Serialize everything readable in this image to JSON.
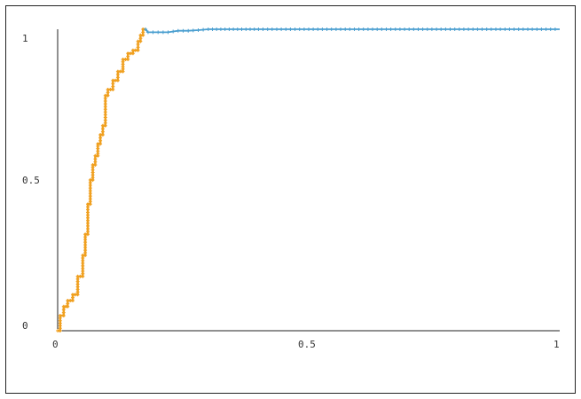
{
  "chart_data": {
    "type": "line",
    "title": "",
    "xlabel": "",
    "ylabel": "",
    "xlim": [
      0,
      1
    ],
    "ylim": [
      0,
      1
    ],
    "x_ticks": [
      "0",
      "0.5",
      "1"
    ],
    "y_ticks": [
      "0",
      "0.5",
      "1"
    ],
    "grid": false,
    "legend": "none",
    "series": [
      {
        "color": "#f0a020",
        "x": [
          0.0,
          0.005,
          0.005,
          0.012,
          0.012,
          0.02,
          0.02,
          0.03,
          0.03,
          0.04,
          0.04,
          0.05,
          0.05,
          0.055,
          0.055,
          0.06,
          0.06,
          0.065,
          0.065,
          0.07,
          0.07,
          0.075,
          0.075,
          0.08,
          0.08,
          0.085,
          0.085,
          0.09,
          0.09,
          0.095,
          0.095,
          0.1,
          0.1,
          0.11,
          0.11,
          0.12,
          0.12,
          0.13,
          0.13,
          0.14,
          0.14,
          0.15,
          0.15,
          0.16,
          0.16,
          0.165,
          0.165,
          0.17,
          0.17,
          0.175
        ],
        "y": [
          0.0,
          0.0,
          0.05,
          0.05,
          0.08,
          0.08,
          0.1,
          0.1,
          0.12,
          0.12,
          0.18,
          0.18,
          0.25,
          0.25,
          0.32,
          0.32,
          0.42,
          0.42,
          0.5,
          0.5,
          0.55,
          0.55,
          0.58,
          0.58,
          0.62,
          0.62,
          0.65,
          0.65,
          0.68,
          0.68,
          0.78,
          0.78,
          0.8,
          0.8,
          0.83,
          0.83,
          0.86,
          0.86,
          0.9,
          0.9,
          0.92,
          0.92,
          0.93,
          0.93,
          0.96,
          0.96,
          0.98,
          0.98,
          1.0,
          1.0
        ]
      },
      {
        "color": "#4a9fd0",
        "x": [
          0.175,
          0.18,
          0.2,
          0.22,
          0.24,
          0.26,
          0.28,
          0.3,
          0.35,
          0.4,
          0.5,
          0.6,
          0.7,
          0.8,
          0.9,
          1.0
        ],
        "y": [
          1.0,
          0.99,
          0.99,
          0.99,
          0.995,
          0.995,
          0.997,
          1.0,
          1.0,
          1.0,
          1.0,
          1.0,
          1.0,
          1.0,
          1.0,
          1.0
        ]
      }
    ]
  }
}
